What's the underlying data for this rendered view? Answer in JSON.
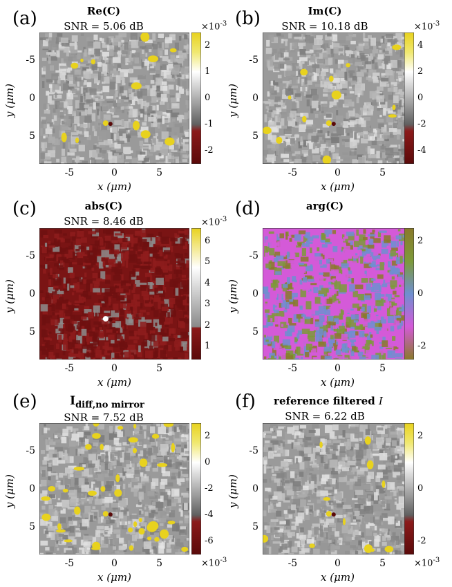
{
  "panels": [
    {
      "id": "a",
      "label": "(a)",
      "title": "Re(C)",
      "snr": "SNR = 5.06 dB",
      "cb_ticks": [
        "2",
        "1",
        "0",
        "-1",
        "-2"
      ],
      "cb_exp": "×10",
      "cb_exp_pow": "-3",
      "cb_exp_pos": "top",
      "colormap": "diverging"
    },
    {
      "id": "b",
      "label": "(b)",
      "title": "Im(C)",
      "snr": "SNR = 10.18 dB",
      "cb_ticks": [
        "4",
        "2",
        "0",
        "-2",
        "-4"
      ],
      "cb_exp": "×10",
      "cb_exp_pow": "-3",
      "cb_exp_pos": "top",
      "colormap": "diverging"
    },
    {
      "id": "c",
      "label": "(c)",
      "title": "abs(C)",
      "snr": "SNR = 8.46 dB",
      "cb_ticks": [
        "6",
        "5",
        "4",
        "3",
        "2",
        "1"
      ],
      "cb_exp": "×10",
      "cb_exp_pow": "-3",
      "cb_exp_pos": "top",
      "colormap": "abs"
    },
    {
      "id": "d",
      "label": "(d)",
      "title": "arg(C)",
      "snr": "",
      "cb_ticks": [
        "2",
        "0",
        "-2"
      ],
      "cb_exp": "",
      "cb_exp_pow": "",
      "cb_exp_pos": "none",
      "colormap": "phase"
    },
    {
      "id": "e",
      "label": "(e)",
      "title": "I",
      "title_sub": "diff,no mirror",
      "snr": "SNR = 7.52 dB",
      "cb_ticks": [
        "2",
        "0",
        "-2",
        "-4",
        "-6"
      ],
      "cb_exp": "×10",
      "cb_exp_pow": "-3",
      "cb_exp_pos": "bottom",
      "colormap": "diverging"
    },
    {
      "id": "f",
      "label": "(f)",
      "title": "reference filtered",
      "title_italic": "I",
      "snr": "SNR = 6.22 dB",
      "cb_ticks": [
        "2",
        "0",
        "-2"
      ],
      "cb_exp": "×10",
      "cb_exp_pow": "-3",
      "cb_exp_pos": "bottom",
      "colormap": "diverging"
    }
  ],
  "axes": {
    "x_ticks": [
      "-5",
      "0",
      "5"
    ],
    "y_ticks": [
      "-5",
      "0",
      "5"
    ],
    "xlabel": "x (μm)",
    "ylabel": "y (μm)"
  },
  "colors": {
    "yellow": "#e8d21e",
    "dark_red": "#5a0a0a",
    "red": "#8b1a1a",
    "gray_mid": "#8a8a8a",
    "phase_magenta": "#d45ad8",
    "phase_blue": "#6f8fd0",
    "phase_green": "#7d9a3a",
    "phase_olive": "#8a7a2a"
  }
}
